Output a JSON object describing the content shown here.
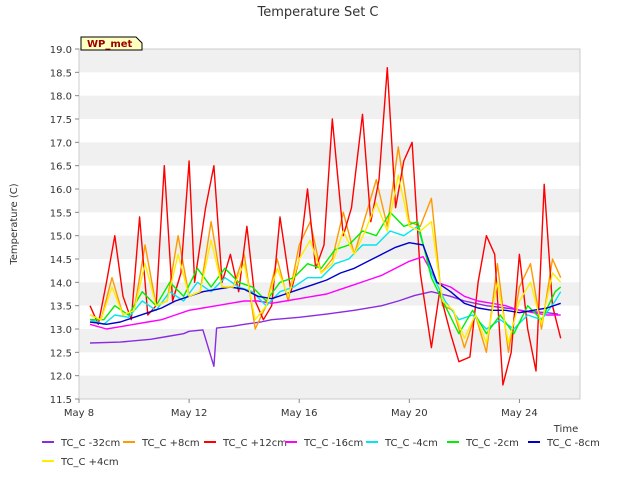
{
  "chart_data": {
    "type": "line",
    "title": "Temperature Set C",
    "xlabel": "Time",
    "ylabel": "Temperature (C)",
    "station_label": "WP_met",
    "x_tick_labels": [
      "May 8",
      "May 12",
      "May 16",
      "May 20",
      "May 24"
    ],
    "x_tick_days": [
      8,
      12,
      16,
      20,
      24
    ],
    "xlim": [
      8,
      26.2
    ],
    "ylim": [
      11.5,
      19.0
    ],
    "y_ticks": [
      11.5,
      12.0,
      12.5,
      13.0,
      13.5,
      14.0,
      14.5,
      15.0,
      15.5,
      16.0,
      16.5,
      17.0,
      17.5,
      18.0,
      18.5,
      19.0
    ],
    "y_tick_labels": [
      "11.5",
      "12.0",
      "12.5",
      "13.0",
      "13.5",
      "14.0",
      "14.5",
      "15.0",
      "15.5",
      "16.0",
      "16.5",
      "17.0",
      "17.5",
      "18.0",
      "18.5",
      "19.0"
    ],
    "grid": "horizontal bands",
    "legend_position": "bottom",
    "series": [
      {
        "name": "TC_C -32cm",
        "color": "#8a2be2",
        "x": [
          8.4,
          9.5,
          10.6,
          11.2,
          11.8,
          12.0,
          12.5,
          12.9,
          13.0,
          13.6,
          14.0,
          14.6,
          15.0,
          16.0,
          17.0,
          18.0,
          19.0,
          19.6,
          20.2,
          20.8,
          21.5,
          22.0,
          22.8,
          23.5,
          24.3,
          25.0,
          25.4
        ],
        "y": [
          12.7,
          12.72,
          12.78,
          12.84,
          12.9,
          12.95,
          12.98,
          12.2,
          13.02,
          13.06,
          13.1,
          13.15,
          13.2,
          13.25,
          13.32,
          13.4,
          13.5,
          13.6,
          13.72,
          13.8,
          13.7,
          13.6,
          13.5,
          13.45,
          13.38,
          13.35,
          13.32
        ]
      },
      {
        "name": "TC_C +8cm",
        "color": "#ff9900",
        "x": [
          8.4,
          8.8,
          9.2,
          9.6,
          10.0,
          10.4,
          10.8,
          11.2,
          11.6,
          12.0,
          12.4,
          12.8,
          13.2,
          13.6,
          14.0,
          14.4,
          14.8,
          15.2,
          15.6,
          16.0,
          16.4,
          16.8,
          17.2,
          17.6,
          18.0,
          18.4,
          18.8,
          19.2,
          19.6,
          20.0,
          20.4,
          20.8,
          21.2,
          21.6,
          22.0,
          22.4,
          22.8,
          23.2,
          23.6,
          24.0,
          24.4,
          24.8,
          25.2,
          25.5
        ],
        "y": [
          13.3,
          13.2,
          14.1,
          13.3,
          13.4,
          14.8,
          13.5,
          13.6,
          15.0,
          13.7,
          13.8,
          15.3,
          13.9,
          13.9,
          14.6,
          13.0,
          13.5,
          14.5,
          13.6,
          14.8,
          15.3,
          14.2,
          14.5,
          15.5,
          14.6,
          15.4,
          16.2,
          15.2,
          16.9,
          15.3,
          15.2,
          15.8,
          13.5,
          13.4,
          12.6,
          13.3,
          12.5,
          14.4,
          12.5,
          13.9,
          14.4,
          13.0,
          14.5,
          14.1
        ]
      },
      {
        "name": "TC_C +12cm",
        "color": "#ff0000",
        "x": [
          8.4,
          8.7,
          9.0,
          9.3,
          9.6,
          9.9,
          10.2,
          10.5,
          10.8,
          11.1,
          11.4,
          11.7,
          12.0,
          12.2,
          12.6,
          12.9,
          13.2,
          13.5,
          13.8,
          14.1,
          14.4,
          14.7,
          15.0,
          15.3,
          15.7,
          16.0,
          16.3,
          16.6,
          16.9,
          17.2,
          17.6,
          17.9,
          18.3,
          18.6,
          18.9,
          19.2,
          19.5,
          19.8,
          20.1,
          20.4,
          20.8,
          21.1,
          21.5,
          21.8,
          22.2,
          22.5,
          22.8,
          23.1,
          23.4,
          23.7,
          24.0,
          24.3,
          24.6,
          24.9,
          25.2,
          25.5
        ],
        "y": [
          13.5,
          13.1,
          14.0,
          15.0,
          13.7,
          13.2,
          15.4,
          13.3,
          13.5,
          16.5,
          13.6,
          14.2,
          16.6,
          14.0,
          15.6,
          16.5,
          14.0,
          14.6,
          13.8,
          15.2,
          13.6,
          13.2,
          13.5,
          15.4,
          13.8,
          14.5,
          16.0,
          14.3,
          14.8,
          17.5,
          15.0,
          15.6,
          17.6,
          15.3,
          16.2,
          18.6,
          15.6,
          16.6,
          17.0,
          14.2,
          12.6,
          13.8,
          12.9,
          12.3,
          12.4,
          14.0,
          15.0,
          14.6,
          11.8,
          12.5,
          14.6,
          13.0,
          12.1,
          16.1,
          13.5,
          12.8
        ]
      },
      {
        "name": "TC_C -16cm",
        "color": "#ff00ff",
        "x": [
          8.4,
          9.0,
          9.5,
          10.0,
          10.5,
          11.0,
          11.5,
          12.0,
          12.5,
          13.0,
          13.5,
          14.0,
          14.5,
          15.0,
          15.5,
          16.0,
          16.5,
          17.0,
          17.5,
          18.0,
          18.5,
          19.0,
          19.5,
          20.0,
          20.5,
          21.0,
          21.5,
          22.0,
          22.5,
          23.0,
          23.5,
          24.0,
          24.5,
          25.0,
          25.5
        ],
        "y": [
          13.1,
          13.0,
          13.05,
          13.1,
          13.15,
          13.2,
          13.3,
          13.4,
          13.45,
          13.5,
          13.55,
          13.6,
          13.6,
          13.55,
          13.6,
          13.65,
          13.7,
          13.75,
          13.85,
          13.95,
          14.05,
          14.15,
          14.3,
          14.45,
          14.55,
          14.0,
          13.9,
          13.7,
          13.6,
          13.55,
          13.5,
          13.4,
          13.35,
          13.3,
          13.3
        ]
      },
      {
        "name": "TC_C -4cm",
        "color": "#00e5ee",
        "x": [
          8.4,
          8.9,
          9.3,
          9.8,
          10.3,
          10.8,
          11.3,
          11.8,
          12.3,
          12.8,
          13.3,
          13.8,
          14.3,
          14.8,
          15.3,
          15.8,
          16.3,
          16.8,
          17.3,
          17.8,
          18.3,
          18.8,
          19.3,
          19.8,
          20.3,
          20.8,
          21.3,
          21.8,
          22.3,
          22.8,
          23.3,
          23.8,
          24.3,
          24.8,
          25.3,
          25.5
        ],
        "y": [
          13.2,
          13.1,
          13.3,
          13.25,
          13.6,
          13.4,
          13.8,
          13.6,
          14.0,
          13.8,
          14.1,
          13.9,
          13.8,
          13.5,
          13.8,
          13.9,
          14.1,
          14.1,
          14.4,
          14.5,
          14.8,
          14.8,
          15.1,
          15.0,
          15.2,
          14.2,
          13.6,
          13.2,
          13.3,
          13.0,
          13.2,
          13.0,
          13.3,
          13.2,
          13.6,
          13.8
        ]
      },
      {
        "name": "TC_C -2cm",
        "color": "#00ee00",
        "x": [
          8.4,
          8.9,
          9.3,
          9.8,
          10.3,
          10.8,
          11.3,
          11.8,
          12.3,
          12.8,
          13.3,
          13.8,
          14.3,
          14.8,
          15.3,
          15.8,
          16.3,
          16.8,
          17.3,
          17.8,
          18.3,
          18.8,
          19.3,
          19.8,
          20.3,
          20.8,
          21.3,
          21.8,
          22.3,
          22.8,
          23.3,
          23.8,
          24.3,
          24.8,
          25.3,
          25.5
        ],
        "y": [
          13.2,
          13.2,
          13.5,
          13.3,
          13.8,
          13.5,
          14.0,
          13.7,
          14.3,
          13.9,
          14.3,
          14.0,
          13.9,
          13.6,
          14.0,
          14.1,
          14.4,
          14.3,
          14.7,
          14.8,
          15.1,
          15.0,
          15.5,
          15.2,
          15.3,
          14.1,
          13.5,
          12.9,
          13.4,
          12.9,
          13.3,
          12.9,
          13.5,
          13.2,
          13.8,
          13.9
        ]
      },
      {
        "name": "TC_C -8cm",
        "color": "#0000cc",
        "x": [
          8.4,
          9.0,
          9.5,
          10.0,
          10.5,
          11.0,
          11.5,
          12.0,
          12.5,
          13.0,
          13.5,
          14.0,
          14.5,
          15.0,
          15.5,
          16.0,
          16.5,
          17.0,
          17.5,
          18.0,
          18.5,
          19.0,
          19.5,
          20.0,
          20.5,
          21.0,
          21.5,
          22.0,
          22.5,
          23.0,
          23.5,
          24.0,
          24.5,
          25.0,
          25.5
        ],
        "y": [
          13.15,
          13.1,
          13.15,
          13.25,
          13.35,
          13.45,
          13.6,
          13.7,
          13.8,
          13.85,
          13.9,
          13.85,
          13.7,
          13.65,
          13.75,
          13.85,
          13.95,
          14.05,
          14.2,
          14.3,
          14.45,
          14.6,
          14.75,
          14.85,
          14.8,
          14.0,
          13.8,
          13.55,
          13.45,
          13.4,
          13.4,
          13.35,
          13.4,
          13.45,
          13.55
        ]
      },
      {
        "name": "TC_C +4cm",
        "color": "#ffee00",
        "x": [
          8.4,
          8.8,
          9.2,
          9.6,
          10.0,
          10.4,
          10.8,
          11.2,
          11.6,
          12.0,
          12.4,
          12.8,
          13.2,
          13.6,
          14.0,
          14.4,
          14.8,
          15.2,
          15.6,
          16.0,
          16.4,
          16.8,
          17.2,
          17.6,
          18.0,
          18.4,
          18.8,
          19.2,
          19.6,
          20.0,
          20.4,
          20.8,
          21.2,
          21.6,
          22.0,
          22.4,
          22.8,
          23.2,
          23.6,
          24.0,
          24.4,
          24.8,
          25.2,
          25.5
        ],
        "y": [
          13.3,
          13.2,
          13.9,
          13.3,
          13.4,
          14.4,
          13.5,
          13.6,
          14.6,
          13.7,
          13.8,
          14.9,
          13.9,
          13.9,
          14.4,
          13.2,
          13.5,
          14.3,
          13.7,
          14.5,
          14.9,
          14.2,
          14.4,
          15.1,
          14.6,
          15.1,
          15.7,
          15.1,
          16.3,
          15.2,
          15.1,
          15.3,
          13.6,
          13.4,
          12.8,
          13.3,
          12.7,
          14.0,
          12.7,
          13.6,
          14.0,
          13.1,
          14.2,
          14.0
        ]
      }
    ]
  }
}
